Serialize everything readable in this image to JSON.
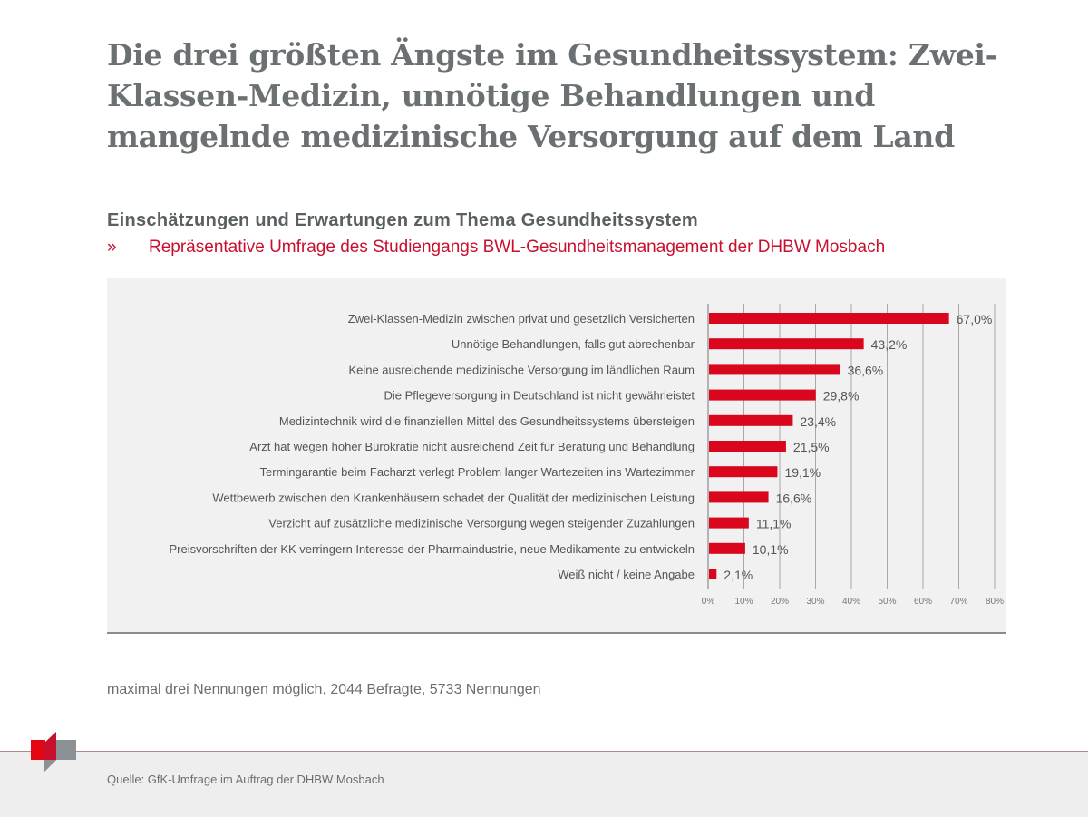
{
  "header": {
    "title": "Die drei größten Ängste im Gesundheitssystem: Zwei-Klassen-Medizin, unnötige Behandlungen und mangelnde medizinische Versorgung auf dem Land",
    "subtitle": "Einschätzungen und Erwartungen zum Thema Gesundheitssystem",
    "subline_marker": "»",
    "subline": "Repräsentative Umfrage des Studiengangs BWL-Gesundheitsmanagement der DHBW Mosbach"
  },
  "note": "maximal drei Nennungen möglich, 2044 Befragte, 5733 Nennungen",
  "footer": {
    "source": "Quelle: GfK-Umfrage im Auftrag der DHBW Mosbach"
  },
  "colors": {
    "bar": "#d9061e",
    "accent": "#c8102e",
    "panel": "#f1f1f2",
    "grid": "#9a9a9a"
  },
  "chart_data": {
    "type": "bar",
    "orientation": "horizontal",
    "categories": [
      "Zwei-Klassen-Medizin zwischen privat und gesetzlich Versicherten",
      "Unnötige Behandlungen, falls gut abrechenbar",
      "Keine ausreichende medizinische Versorgung im ländlichen Raum",
      "Die Pflegeversorgung in Deutschland ist nicht gewährleistet",
      "Medizintechnik wird die finanziellen Mittel des Gesundheitssystems übersteigen",
      "Arzt hat wegen hoher Bürokratie nicht ausreichend Zeit für Beratung und Behandlung",
      "Terminga­rantie beim Facharzt verlegt Problem langer Wartezeiten ins Wartezimmer",
      "Wettbewerb zwischen den Krankenhäusern schadet der Qualität der medizinischen Leistung",
      "Verzicht auf zusätzliche medizinische Versorgung wegen steigender Zuzahlungen",
      "Preisvorschriften der KK verringern Interesse der Pharmaindustrie, neue Medikamente zu entwickeln",
      "Weiß nicht / keine Angabe"
    ],
    "values": [
      67.0,
      43.2,
      36.6,
      29.8,
      23.4,
      21.5,
      19.1,
      16.6,
      11.1,
      10.1,
      2.1
    ],
    "data_labels": [
      "67,0%",
      "43,2%",
      "36,6%",
      "29,8%",
      "23,4%",
      "21,5%",
      "19,1%",
      "16,6%",
      "11,1%",
      "10,1%",
      "2,1%"
    ],
    "xlim": [
      0,
      80
    ],
    "xticks": [
      "0%",
      "10%",
      "20%",
      "30%",
      "40%",
      "50%",
      "60%",
      "70%",
      "80%"
    ],
    "grid": true
  }
}
